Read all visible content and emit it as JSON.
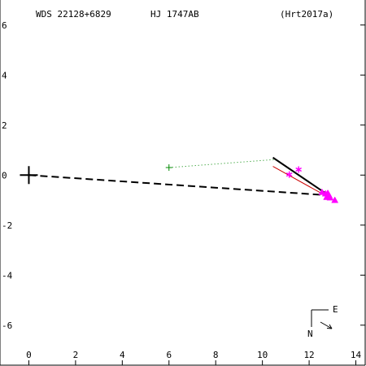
{
  "header": {
    "wds": "WDS 22128+6829",
    "pair": "HJ 1747AB",
    "reference": "(Hrt2017a)"
  },
  "compass": {
    "east_label": "E",
    "north_label": "N"
  },
  "colors": {
    "axes": "#000000",
    "orbit": "#000000",
    "position_angle": "#000000",
    "ephemeris": "#cc0000",
    "measure_line": "#008800",
    "measure_point": "#008800",
    "observation": "#ff00ff"
  },
  "chart_data": {
    "type": "scatter",
    "title": "",
    "xlabel": "",
    "ylabel": "",
    "xlim": [
      -1.2,
      14.4
    ],
    "ylim": [
      -7.6,
      7.0
    ],
    "x_ticks": [
      0,
      2,
      4,
      6,
      8,
      10,
      12,
      14
    ],
    "y_ticks": [
      -6,
      -4,
      -2,
      0,
      2,
      4,
      6
    ],
    "primary_star": {
      "x": 0,
      "y": 0,
      "marker": "plus"
    },
    "position_angle_line": [
      [
        0,
        0
      ],
      [
        12.7,
        -0.8
      ]
    ],
    "orbit_segment": [
      [
        10.45,
        0.7
      ],
      [
        12.85,
        -0.82
      ]
    ],
    "ephemeris_segment": [
      [
        10.45,
        0.35
      ],
      [
        12.7,
        -0.82
      ]
    ],
    "measure_link": [
      [
        6.0,
        0.3
      ],
      [
        10.5,
        0.62
      ]
    ],
    "measure_point": {
      "x": 6.0,
      "y": 0.3,
      "marker": "plus"
    },
    "star_observations": [
      {
        "x": 11.15,
        "y": 0.02
      },
      {
        "x": 11.55,
        "y": 0.22
      }
    ],
    "triangle_observations": [
      {
        "x": 12.55,
        "y": -0.68
      },
      {
        "x": 12.7,
        "y": -0.74
      },
      {
        "x": 12.8,
        "y": -0.72
      },
      {
        "x": 12.85,
        "y": -0.8
      },
      {
        "x": 12.9,
        "y": -0.9
      },
      {
        "x": 13.1,
        "y": -1.0
      },
      {
        "x": 12.75,
        "y": -0.88
      }
    ]
  }
}
